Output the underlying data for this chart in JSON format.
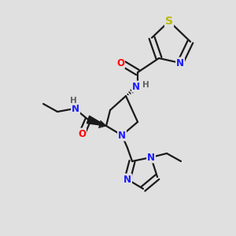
{
  "bg_color": "#e0e0e0",
  "bond_color": "#1a1a1a",
  "bond_width": 1.6,
  "dbo": 0.012,
  "atom_colors": {
    "N": "#1a1aff",
    "O": "#ff0000",
    "S": "#b8b800",
    "H": "#606060"
  },
  "fs": 8.5,
  "fs_small": 7.5,
  "xlim": [
    0,
    300
  ],
  "ylim": [
    0,
    300
  ]
}
